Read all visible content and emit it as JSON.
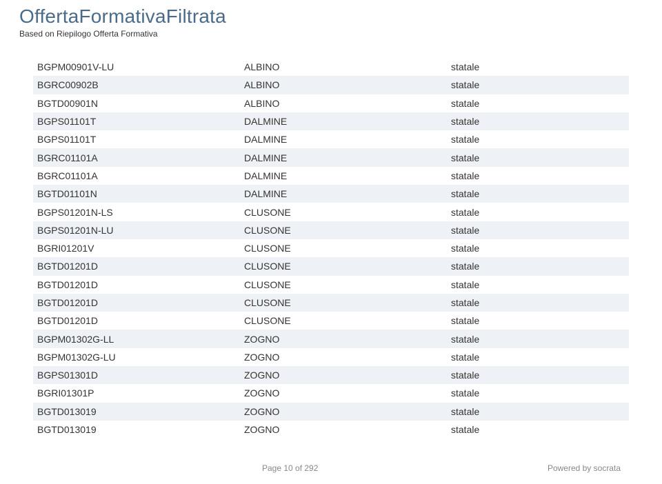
{
  "colors": {
    "title": "#4a6b8a",
    "text": "#333333",
    "row_alt": "#eef1f6",
    "footer": "#888888"
  },
  "header": {
    "title": "OffertaFormativaFiltrata",
    "subtitle": "Based on Riepilogo Offerta Formativa"
  },
  "table": {
    "columns": [
      "code",
      "city",
      "type"
    ],
    "rows": [
      {
        "code": "BGPM00901V-LU",
        "city": "ALBINO",
        "type": "statale",
        "alt": false
      },
      {
        "code": "BGRC00902B",
        "city": "ALBINO",
        "type": "statale",
        "alt": true
      },
      {
        "code": "BGTD00901N",
        "city": "ALBINO",
        "type": "statale",
        "alt": false
      },
      {
        "code": "BGPS01101T",
        "city": "DALMINE",
        "type": "statale",
        "alt": true
      },
      {
        "code": "BGPS01101T",
        "city": "DALMINE",
        "type": "statale",
        "alt": false
      },
      {
        "code": "BGRC01101A",
        "city": "DALMINE",
        "type": "statale",
        "alt": true
      },
      {
        "code": "BGRC01101A",
        "city": "DALMINE",
        "type": "statale",
        "alt": false
      },
      {
        "code": "BGTD01101N",
        "city": "DALMINE",
        "type": "statale",
        "alt": true
      },
      {
        "code": "BGPS01201N-LS",
        "city": "CLUSONE",
        "type": "statale",
        "alt": false
      },
      {
        "code": "BGPS01201N-LU",
        "city": "CLUSONE",
        "type": "statale",
        "alt": true
      },
      {
        "code": "BGRI01201V",
        "city": "CLUSONE",
        "type": "statale",
        "alt": false
      },
      {
        "code": "BGTD01201D",
        "city": "CLUSONE",
        "type": "statale",
        "alt": true
      },
      {
        "code": "BGTD01201D",
        "city": "CLUSONE",
        "type": "statale",
        "alt": false
      },
      {
        "code": "BGTD01201D",
        "city": "CLUSONE",
        "type": "statale",
        "alt": true
      },
      {
        "code": "BGTD01201D",
        "city": "CLUSONE",
        "type": "statale",
        "alt": false
      },
      {
        "code": "BGPM01302G-LL",
        "city": "ZOGNO",
        "type": "statale",
        "alt": true
      },
      {
        "code": "BGPM01302G-LU",
        "city": "ZOGNO",
        "type": "statale",
        "alt": false
      },
      {
        "code": "BGPS01301D",
        "city": "ZOGNO",
        "type": "statale",
        "alt": true
      },
      {
        "code": "BGRI01301P",
        "city": "ZOGNO",
        "type": "statale",
        "alt": false
      },
      {
        "code": "BGTD013019",
        "city": "ZOGNO",
        "type": "statale",
        "alt": true
      },
      {
        "code": "BGTD013019",
        "city": "ZOGNO",
        "type": "statale",
        "alt": false
      }
    ]
  },
  "footer": {
    "page": "Page 10 of 292",
    "powered": "Powered by socrata"
  }
}
